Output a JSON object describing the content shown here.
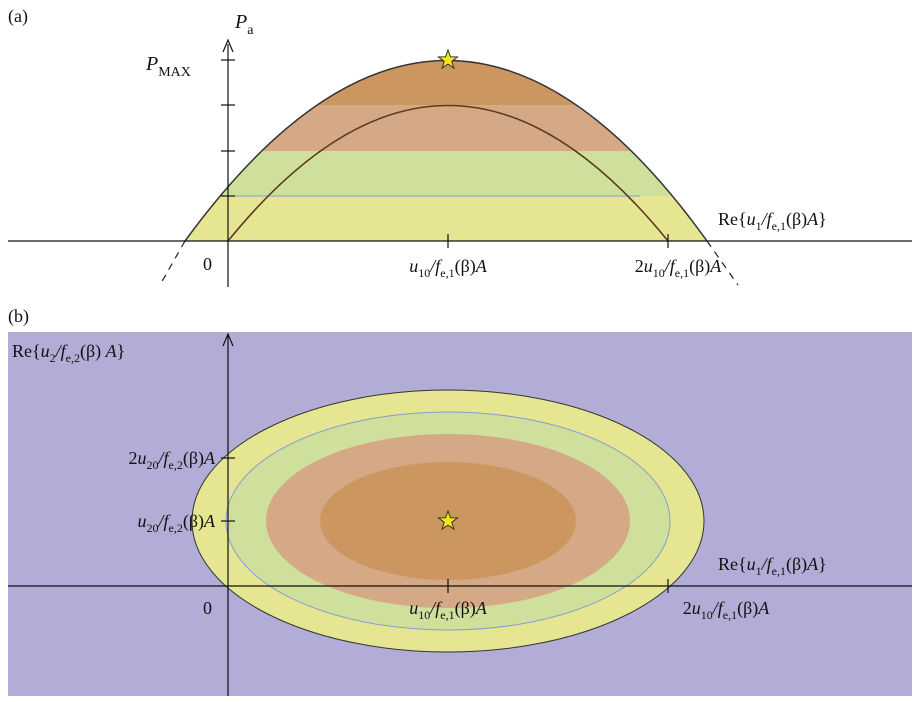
{
  "colors": {
    "background": "#ffffff",
    "plane": "#b1add6",
    "yellow": "#e6e692",
    "green": "#cfe09d",
    "tan": "#d5a985",
    "orange": "#cc9661",
    "star": "#f3e81b",
    "axis": "#111111",
    "curve": "#333333",
    "guide": "#8a9bd0"
  },
  "panel_a": {
    "label": "(a)",
    "y_axis_label": "P",
    "y_axis_sub": "a",
    "pmax_label": "P",
    "pmax_sub": "MAX",
    "x_axis_label": {
      "pre": "Re{",
      "u": "u",
      "u_sub": "1",
      "slash_f": "/f",
      "f_sub": "e,1",
      "beta": "(β)",
      "A": "A",
      "post": "}"
    },
    "zero": "0",
    "tick_mid": {
      "coef": "",
      "u": "u",
      "u_sub": "10",
      "slash_f": "/f",
      "f_sub": "e,1",
      "beta": "(β)",
      "A": "A"
    },
    "tick_end": {
      "coef": "2",
      "u": "u",
      "u_sub": "10",
      "slash_f": "/f",
      "f_sub": "e,1",
      "beta": "(β)",
      "A": "A"
    },
    "star_icon": "star-icon"
  },
  "panel_b": {
    "label": "(b)",
    "y_axis_label": {
      "pre": "Re{",
      "u": "u",
      "u_sub": "2",
      "slash_f": "/f",
      "f_sub": "e,2",
      "beta": "(β) ",
      "A": "A",
      "post": "}"
    },
    "x_axis_label": {
      "pre": "Re{",
      "u": "u",
      "u_sub": "1",
      "slash_f": "/f",
      "f_sub": "e,1",
      "beta": "(β)",
      "A": "A",
      "post": "}"
    },
    "zero": "0",
    "y_tick_top": {
      "coef": "2",
      "u": "u",
      "u_sub": "20",
      "slash_f": "/f",
      "f_sub": "e,2",
      "beta": "(β)",
      "A": "A"
    },
    "y_tick_mid": {
      "coef": "",
      "u": "u",
      "u_sub": "20",
      "slash_f": "/f",
      "f_sub": "e,2",
      "beta": "(β)",
      "A": "A"
    },
    "x_tick_mid": {
      "coef": "",
      "u": "u",
      "u_sub": "10",
      "slash_f": "/f",
      "f_sub": "e,1",
      "beta": "(β)",
      "A": "A"
    },
    "x_tick_end": {
      "coef": "2",
      "u": "u",
      "u_sub": "10",
      "slash_f": "/f",
      "f_sub": "e,1",
      "beta": "(β)",
      "A": "A"
    },
    "star_icon": "star-icon"
  }
}
